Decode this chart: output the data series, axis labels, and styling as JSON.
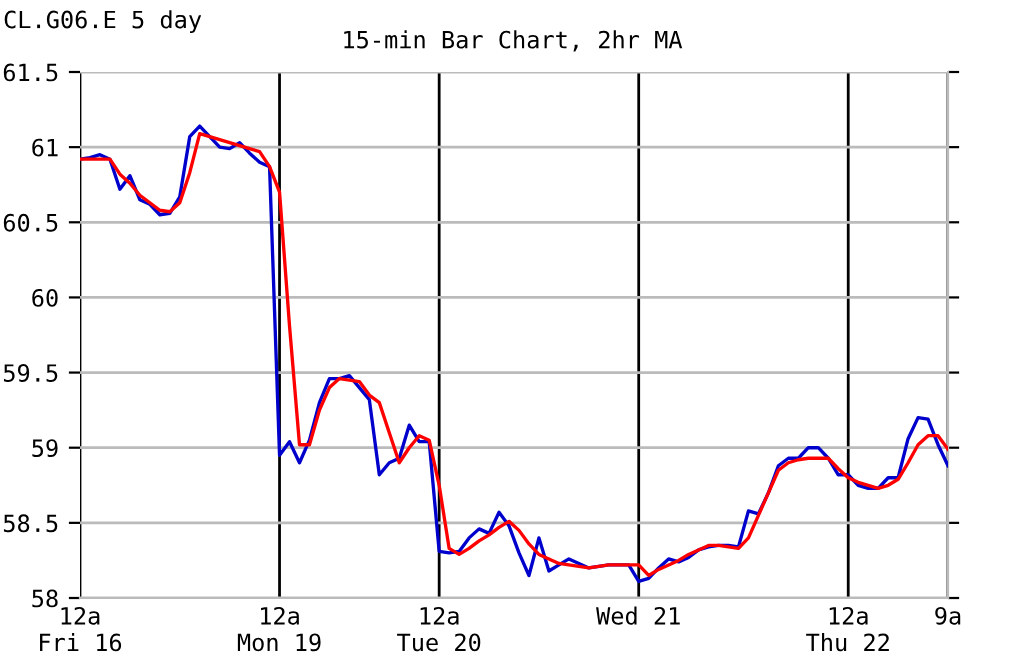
{
  "chart_data": {
    "type": "line",
    "title": "CL.G06.E 5 day",
    "subtitle": "15-min Bar Chart, 2hr MA",
    "categories": [
      "12a\nFri 16",
      null,
      null,
      null,
      null,
      null,
      null,
      null,
      null,
      null,
      null,
      null,
      null,
      null,
      null,
      null,
      null,
      null,
      null,
      null,
      "12a\nMon 19",
      null,
      null,
      null,
      null,
      null,
      null,
      null,
      null,
      null,
      null,
      null,
      null,
      null,
      null,
      null,
      "12a\nTue 20",
      null,
      null,
      null,
      null,
      null,
      null,
      null,
      null,
      null,
      null,
      null,
      null,
      null,
      null,
      null,
      null,
      null,
      null,
      null,
      "Wed 21",
      null,
      null,
      null,
      null,
      null,
      null,
      null,
      null,
      null,
      null,
      null,
      null,
      null,
      null,
      null,
      null,
      null,
      null,
      null,
      null,
      "12a\nThu 22",
      null,
      null,
      null,
      null,
      null,
      null,
      null,
      null,
      null,
      "9a"
    ],
    "ylim": [
      58,
      61.5
    ],
    "yticks": [
      58,
      58.5,
      59,
      59.5,
      60,
      60.5,
      61,
      61.5
    ],
    "grid": true,
    "series": [
      {
        "color": "#0000cc",
        "values": [
          60.92,
          60.93,
          60.95,
          60.92,
          60.72,
          60.81,
          60.65,
          60.62,
          60.55,
          60.56,
          60.67,
          61.07,
          61.14,
          61.07,
          61.0,
          60.99,
          61.03,
          60.96,
          60.9,
          60.87,
          58.95,
          59.04,
          58.9,
          59.05,
          59.3,
          59.46,
          59.46,
          59.48,
          59.4,
          59.32,
          58.82,
          58.9,
          58.93,
          59.15,
          59.04,
          59.04,
          58.31,
          58.3,
          58.31,
          58.4,
          58.46,
          58.43,
          58.57,
          58.48,
          58.3,
          58.15,
          58.4,
          58.18,
          58.22,
          58.26,
          58.23,
          58.2,
          58.21,
          58.22,
          58.22,
          58.22,
          58.11,
          58.13,
          58.2,
          58.26,
          58.24,
          58.27,
          58.32,
          58.34,
          58.35,
          58.35,
          58.34,
          58.58,
          58.56,
          58.7,
          58.88,
          58.93,
          58.93,
          59.0,
          59.0,
          58.93,
          58.82,
          58.82,
          58.75,
          58.73,
          58.73,
          58.8,
          58.8,
          59.06,
          59.2,
          59.19,
          59.02,
          58.88
        ]
      },
      {
        "color": "#ff0000",
        "values": [
          60.92,
          60.92,
          60.92,
          60.92,
          60.82,
          60.76,
          60.68,
          60.63,
          60.58,
          60.57,
          60.63,
          60.83,
          61.09,
          61.07,
          61.05,
          61.03,
          61.01,
          60.99,
          60.97,
          60.87,
          60.7,
          59.81,
          59.02,
          59.02,
          59.25,
          59.4,
          59.46,
          59.45,
          59.44,
          59.35,
          59.3,
          59.1,
          58.9,
          59.0,
          59.08,
          59.05,
          58.75,
          58.33,
          58.29,
          58.33,
          58.38,
          58.42,
          58.47,
          58.51,
          58.45,
          58.36,
          58.29,
          58.26,
          58.23,
          58.22,
          58.21,
          58.2,
          58.21,
          58.22,
          58.22,
          58.22,
          58.22,
          58.15,
          58.19,
          58.22,
          58.25,
          58.29,
          58.32,
          58.35,
          58.35,
          58.34,
          58.33,
          58.4,
          58.55,
          58.7,
          58.85,
          58.9,
          58.92,
          58.93,
          58.93,
          58.93,
          58.86,
          58.8,
          58.77,
          58.75,
          58.73,
          58.75,
          58.79,
          58.9,
          59.02,
          59.08,
          59.08,
          58.99
        ]
      }
    ]
  }
}
